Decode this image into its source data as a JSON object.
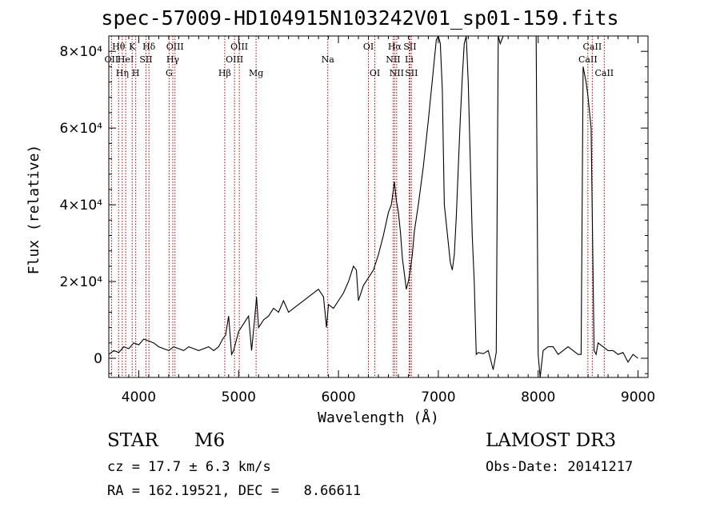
{
  "chart_data": {
    "type": "line",
    "title": "spec-57009-HD104915N103242V01_sp01-159.fits",
    "xlabel": "Wavelength (Å)",
    "ylabel": "Flux (relative)",
    "xlim": [
      3700,
      9100
    ],
    "ylim": [
      -5000,
      84000
    ],
    "x_ticks": [
      {
        "value": 4000,
        "label": "4000"
      },
      {
        "value": 5000,
        "label": "5000"
      },
      {
        "value": 6000,
        "label": "6000"
      },
      {
        "value": 7000,
        "label": "7000"
      },
      {
        "value": 8000,
        "label": "8000"
      },
      {
        "value": 9000,
        "label": "9000"
      }
    ],
    "y_ticks": [
      {
        "value": 0,
        "label": "0"
      },
      {
        "value": 20000,
        "label": "2×10⁴"
      },
      {
        "value": 40000,
        "label": "4×10⁴"
      },
      {
        "value": 60000,
        "label": "6×10⁴"
      },
      {
        "value": 80000,
        "label": "8×10⁴"
      }
    ],
    "grid": false,
    "legend": "none",
    "line_color": "#000000",
    "marker_color": "#aa0000",
    "series": [
      {
        "x": [
          3700,
          3750,
          3800,
          3850,
          3900,
          3950,
          4000,
          4050,
          4100,
          4150,
          4200,
          4250,
          4300,
          4350,
          4400,
          4450,
          4500,
          4550,
          4600,
          4650,
          4700,
          4750,
          4800,
          4840,
          4870,
          4900,
          4930,
          4950,
          4980,
          5000,
          5050,
          5100,
          5130,
          5160,
          5180,
          5200,
          5250,
          5300,
          5350,
          5400,
          5450,
          5500,
          5550,
          5600,
          5650,
          5700,
          5750,
          5800,
          5850,
          5880,
          5900,
          5950,
          6000,
          6050,
          6100,
          6150,
          6180,
          6200,
          6250,
          6300,
          6350,
          6400,
          6450,
          6500,
          6530,
          6560,
          6580,
          6600,
          6620,
          6640,
          6660,
          6680,
          6700,
          6720,
          6740,
          6760,
          6800,
          6850,
          6900,
          6950,
          6980,
          7000,
          7020,
          7040,
          7060,
          7080,
          7100,
          7120,
          7140,
          7160,
          7180,
          7200,
          7220,
          7240,
          7260,
          7280,
          7300,
          7320,
          7340,
          7360,
          7380,
          7400,
          7450,
          7500,
          7550,
          7580,
          7600,
          7620,
          7650,
          7700,
          7750,
          7800,
          7850,
          7900,
          7950,
          7980,
          8000,
          8020,
          8050,
          8100,
          8150,
          8200,
          8250,
          8300,
          8350,
          8400,
          8430,
          8450,
          8480,
          8500,
          8530,
          8560,
          8580,
          8600,
          8650,
          8700,
          8750,
          8800,
          8850,
          8900,
          8950,
          9000
        ],
        "y": [
          1000,
          2000,
          1500,
          3000,
          2500,
          4000,
          3500,
          5000,
          4500,
          4000,
          3000,
          2500,
          2000,
          3000,
          2500,
          2000,
          3000,
          2500,
          2000,
          2500,
          3000,
          2000,
          3000,
          5000,
          6000,
          11000,
          1000,
          2000,
          5000,
          7000,
          9000,
          11000,
          2000,
          10000,
          16000,
          8000,
          10000,
          11000,
          13000,
          12000,
          15000,
          12000,
          13000,
          14000,
          15000,
          16000,
          17000,
          18000,
          16000,
          8000,
          14000,
          13000,
          15000,
          17000,
          20000,
          24000,
          23000,
          15000,
          19000,
          21000,
          23000,
          27000,
          32000,
          38000,
          40000,
          46000,
          41000,
          38000,
          33000,
          26000,
          22000,
          18000,
          20000,
          23000,
          27000,
          33000,
          40000,
          50000,
          62000,
          75000,
          83000,
          84000,
          82000,
          70000,
          40000,
          35000,
          30000,
          25000,
          23000,
          27000,
          37000,
          50000,
          62000,
          73000,
          82000,
          84000,
          72000,
          52000,
          32000,
          20000,
          1000,
          1500,
          1200,
          2000,
          -3000,
          1500,
          84000,
          82000,
          84000,
          84000,
          84000,
          84000,
          84000,
          84000,
          84000,
          84000,
          1000,
          -5000,
          2000,
          3000,
          3000,
          1000,
          2000,
          3000,
          2000,
          1000,
          1000,
          76000,
          72000,
          68000,
          60000,
          2000,
          1000,
          4000,
          3000,
          2000,
          2000,
          1000,
          1500,
          -1000,
          1000,
          0
        ]
      }
    ],
    "line_markers": [
      {
        "x": 3727,
        "label": "OII",
        "row": 2
      },
      {
        "x": 3798,
        "label": "Hθ",
        "row": 1
      },
      {
        "x": 3835,
        "label": "Hη",
        "row": 3
      },
      {
        "x": 3869,
        "label": "HeI",
        "row": 2
      },
      {
        "x": 3934,
        "label": "K",
        "row": 1
      },
      {
        "x": 3970,
        "label": "H",
        "row": 3
      },
      {
        "x": 4072,
        "label": "SII",
        "row": 2
      },
      {
        "x": 4102,
        "label": "Hδ",
        "row": 1
      },
      {
        "x": 4304,
        "label": "G",
        "row": 3
      },
      {
        "x": 4341,
        "label": "Hγ",
        "row": 2
      },
      {
        "x": 4363,
        "label": "OIII",
        "row": 1
      },
      {
        "x": 4861,
        "label": "Hβ",
        "row": 3
      },
      {
        "x": 4959,
        "label": "OIII",
        "row": 2
      },
      {
        "x": 5007,
        "label": "OIII",
        "row": 1
      },
      {
        "x": 5175,
        "label": "Mg",
        "row": 3
      },
      {
        "x": 5893,
        "label": "Na",
        "row": 2
      },
      {
        "x": 6300,
        "label": "OI",
        "row": 1
      },
      {
        "x": 6364,
        "label": "OI",
        "row": 3
      },
      {
        "x": 6548,
        "label": "NII",
        "row": 2
      },
      {
        "x": 6563,
        "label": "Hα",
        "row": 1
      },
      {
        "x": 6583,
        "label": "NII",
        "row": 3
      },
      {
        "x": 6708,
        "label": "Li",
        "row": 2
      },
      {
        "x": 6716,
        "label": "SII",
        "row": 1
      },
      {
        "x": 6731,
        "label": "SII",
        "row": 3
      },
      {
        "x": 8498,
        "label": "CaII",
        "row": 2
      },
      {
        "x": 8542,
        "label": "CaII",
        "row": 1
      },
      {
        "x": 8662,
        "label": "CaII",
        "row": 3
      }
    ]
  },
  "info": {
    "object_type": "STAR",
    "object_class": "M6",
    "survey": "LAMOST DR3",
    "redshift_text": "cz = 17.7 ± 6.3 km/s",
    "obs_date_text": "Obs-Date: 20141217",
    "coords_text": "RA = 162.19521, DEC =   8.66611"
  }
}
